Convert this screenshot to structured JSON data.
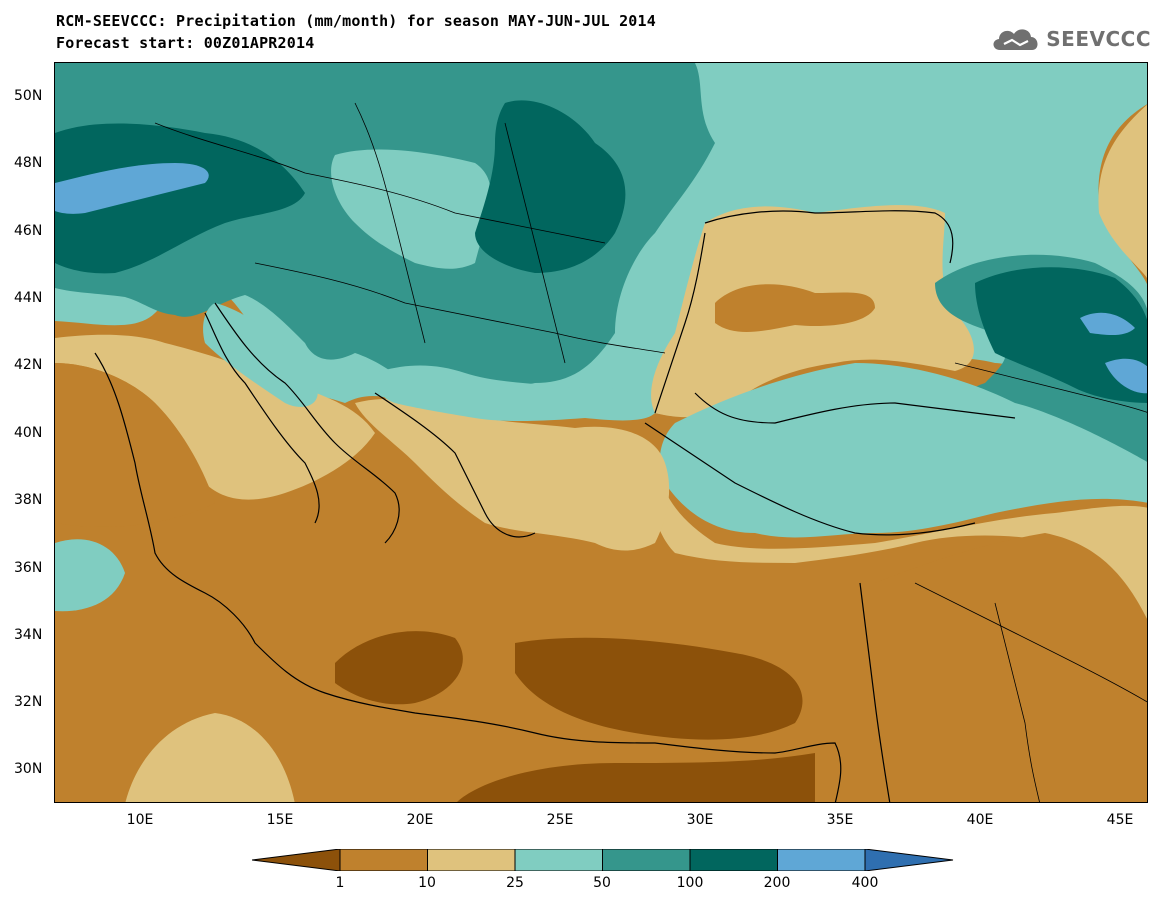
{
  "title_line1": "RCM-SEEVCCC: Precipitation (mm/month) for season MAY-JUN-JUL 2014",
  "title_line2": "Forecast start: 00Z01APR2014",
  "logo_text": "SEEVCCC",
  "map": {
    "lon_range": [
      7,
      46
    ],
    "lat_range": [
      29,
      51
    ],
    "lat_ticks": [
      "50N",
      "48N",
      "46N",
      "44N",
      "42N",
      "40N",
      "38N",
      "36N",
      "34N",
      "32N",
      "30N"
    ],
    "lon_ticks": [
      "10E",
      "15E",
      "20E",
      "25E",
      "30E",
      "35E",
      "40E",
      "45E"
    ],
    "regions": [
      {
        "name": "central-europe",
        "class": "50-100",
        "color": "#35968c"
      },
      {
        "name": "black-sea",
        "class": "10-25",
        "color": "#dfc27d"
      },
      {
        "name": "black-sea-core",
        "class": "1-10",
        "color": "#bf812d"
      },
      {
        "name": "turkey",
        "class": "25-50",
        "color": "#80cdc1"
      },
      {
        "name": "caucasus",
        "class": "100-200",
        "color": "#01665e"
      },
      {
        "name": "mediterranean-africa",
        "class": "1-10",
        "color": "#bf812d"
      },
      {
        "name": "libya-egypt-core",
        "class": "<1",
        "color": "#8c510a"
      },
      {
        "name": "alps-peak",
        "class": "200-400",
        "color": "#5fa7d6"
      }
    ]
  },
  "colorbar": {
    "colors": [
      "#8c510a",
      "#bf812d",
      "#dfc27d",
      "#80cdc1",
      "#35968c",
      "#01665e",
      "#5fa7d6",
      "#2f6fb0"
    ],
    "labels": [
      "1",
      "10",
      "25",
      "50",
      "100",
      "200",
      "400"
    ]
  }
}
